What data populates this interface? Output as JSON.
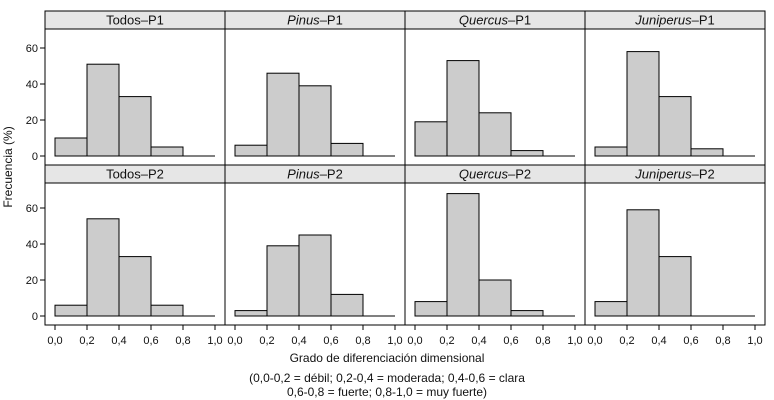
{
  "chart_data": {
    "type": "bar",
    "layout": "faceted histogram grid, 2 rows x 4 columns",
    "ylabel": "Frecuencia (%)",
    "xlabel": "Grado de diferenciación dimensional",
    "note_lines": [
      "(0,0-0,2 = débil; 0,2-0,4 = moderada; 0,4-0,6 = clara",
      "0,6-0,8 = fuerte; 0,8-1,0 = muy fuerte)"
    ],
    "xlim": [
      0,
      1
    ],
    "ylim": [
      0,
      72
    ],
    "x_tick_labels": [
      "0,0",
      "0,2",
      "0,4",
      "0,6",
      "0,8",
      "1,0"
    ],
    "y_tick_labels": [
      "0",
      "20",
      "40",
      "60"
    ],
    "bin_edges": [
      0,
      0.2,
      0.4,
      0.6,
      0.8,
      1.0
    ],
    "bar_color": "#cccccc",
    "strip_color": "#e6e6e6",
    "panels": [
      {
        "genus": "Todos",
        "period": "–P1",
        "italic": false,
        "values": [
          10,
          51,
          33,
          5,
          0
        ]
      },
      {
        "genus": "Pinus",
        "period": "–P1",
        "italic": true,
        "values": [
          6,
          46,
          39,
          7,
          0
        ]
      },
      {
        "genus": "Quercus",
        "period": "–P1",
        "italic": true,
        "values": [
          19,
          53,
          24,
          3,
          0
        ]
      },
      {
        "genus": "Juniperus",
        "period": "–P1",
        "italic": true,
        "values": [
          5,
          58,
          33,
          4,
          0
        ]
      },
      {
        "genus": "Todos",
        "period": "–P2",
        "italic": false,
        "values": [
          6,
          54,
          33,
          6,
          0
        ]
      },
      {
        "genus": "Pinus",
        "period": "–P2",
        "italic": true,
        "values": [
          3,
          39,
          45,
          12,
          0
        ]
      },
      {
        "genus": "Quercus",
        "period": "–P2",
        "italic": true,
        "values": [
          8,
          68,
          20,
          3,
          0
        ]
      },
      {
        "genus": "Juniperus",
        "period": "–P2",
        "italic": true,
        "values": [
          8,
          59,
          33,
          0,
          0
        ]
      }
    ]
  }
}
